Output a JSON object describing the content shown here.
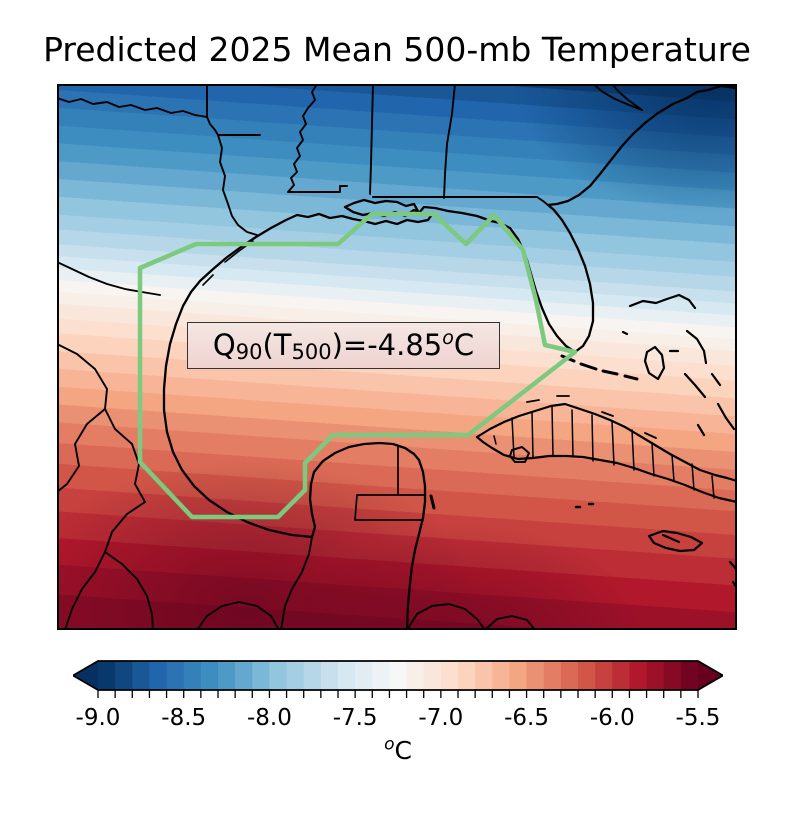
{
  "figure": {
    "title": "Predicted 2025 Mean 500-mb Temperature"
  },
  "annotation": {
    "q": "Q",
    "q_sub": "90",
    "t_open": "(T",
    "t_sub": "500",
    "eq": ")=",
    "value": "-4.85",
    "deg_sup": "o",
    "unit": "C",
    "full_text": "Q90(T500)=-4.85°C"
  },
  "colors": {
    "region_outline_green": "#7dc97f",
    "coastline_black": "#000000",
    "annotation_box_bg_top": "#f4e7e3",
    "annotation_box_bg_bottom": "#eed3d0",
    "annotation_box_border": "#333333"
  },
  "chart_data": {
    "type": "heatmap",
    "title": "Predicted 2025 Mean 500-mb Temperature",
    "variable": "Mean 500-mb temperature (contour-filled map, Gulf of Mexico region)",
    "annotation_text": "Q90(T500)=-4.85°C",
    "annotation_value_degC": -4.85,
    "region_outline": "Gulf of Mexico region highlighted by green polygon",
    "colormap": "RdBu_r (cold blue north to warm dark red south)",
    "colorbar": {
      "orientation": "horizontal",
      "unit_label": "°C",
      "unit_sup": "o",
      "unit_main": "C",
      "range": [
        -9.0,
        -5.5
      ],
      "level_step": 0.1,
      "extend": "both",
      "ticks": [
        -9.0,
        -8.5,
        -8.0,
        -7.5,
        -7.0,
        -6.5,
        -6.0,
        -5.5
      ],
      "tick_labels": [
        "-9.0",
        "-8.5",
        "-8.0",
        "-7.5",
        "-7.0",
        "-6.5",
        "-6.0",
        "-5.5"
      ],
      "under_color": "#053061",
      "over_color": "#67001f",
      "segment_colors": [
        "#09386c",
        "#114781",
        "#195797",
        "#2166ac",
        "#2b73b3",
        "#3480b9",
        "#3e8dc0",
        "#4e9ac7",
        "#65a8cf",
        "#7bb7d6",
        "#92c5de",
        "#a4cee3",
        "#b6d7e8",
        "#c8e0ed",
        "#d6e8f1",
        "#e1edf3",
        "#ecf2f5",
        "#f7f7f7",
        "#f9efe9",
        "#fae7dc",
        "#fcdfce",
        "#fcd3bd",
        "#f9c4a9",
        "#f7b496",
        "#f4a582",
        "#eb9173",
        "#e37e64",
        "#da6a55",
        "#d15648",
        "#c7413e",
        "#bc2d35",
        "#b2182b",
        "#9d1128",
        "#870a24",
        "#720321"
      ]
    },
    "map_gradient": {
      "angle_deg": 184,
      "stops": [
        [
          0,
          "#0f3d72"
        ],
        [
          3,
          "#195797"
        ],
        [
          6,
          "#2166ac"
        ],
        [
          9,
          "#2b73b3"
        ],
        [
          12,
          "#3480b9"
        ],
        [
          15,
          "#3e8dc0"
        ],
        [
          18,
          "#4e9ac7"
        ],
        [
          21,
          "#65a8cf"
        ],
        [
          24,
          "#7bb7d6"
        ],
        [
          27,
          "#92c5de"
        ],
        [
          30,
          "#a4cee3"
        ],
        [
          32.5,
          "#b6d7e8"
        ],
        [
          35,
          "#c8e0ed"
        ],
        [
          37,
          "#d6e8f1"
        ],
        [
          39,
          "#e8f0f4"
        ],
        [
          41,
          "#f7f4f1"
        ],
        [
          43,
          "#f9efe9"
        ],
        [
          45,
          "#fae7dc"
        ],
        [
          47.5,
          "#fcdfce"
        ],
        [
          50,
          "#fcd3bd"
        ],
        [
          53,
          "#f9c4a9"
        ],
        [
          56,
          "#f7b496"
        ],
        [
          59,
          "#f4a582"
        ],
        [
          62,
          "#eb9173"
        ],
        [
          65,
          "#e37e64"
        ],
        [
          68.5,
          "#da6a55"
        ],
        [
          72,
          "#d15648"
        ],
        [
          76,
          "#c7413e"
        ],
        [
          80,
          "#bc2d35"
        ],
        [
          84.5,
          "#b2182b"
        ],
        [
          89,
          "#9d1128"
        ],
        [
          94,
          "#8a0c25"
        ],
        [
          100,
          "#8e1126"
        ]
      ],
      "overlays": [
        "radial-gradient(300px 200px at 96% 0%, rgba(5,48,97,0.85), rgba(5,48,97,0) 65%)",
        "radial-gradient(380px 240px at 28% 96%, rgba(88,2,30,0.55), rgba(88,2,30,0) 62%)",
        "radial-gradient(320px 210px at 60% 103%, rgba(88,2,30,0.5), rgba(88,2,30,0) 58%)"
      ]
    }
  }
}
